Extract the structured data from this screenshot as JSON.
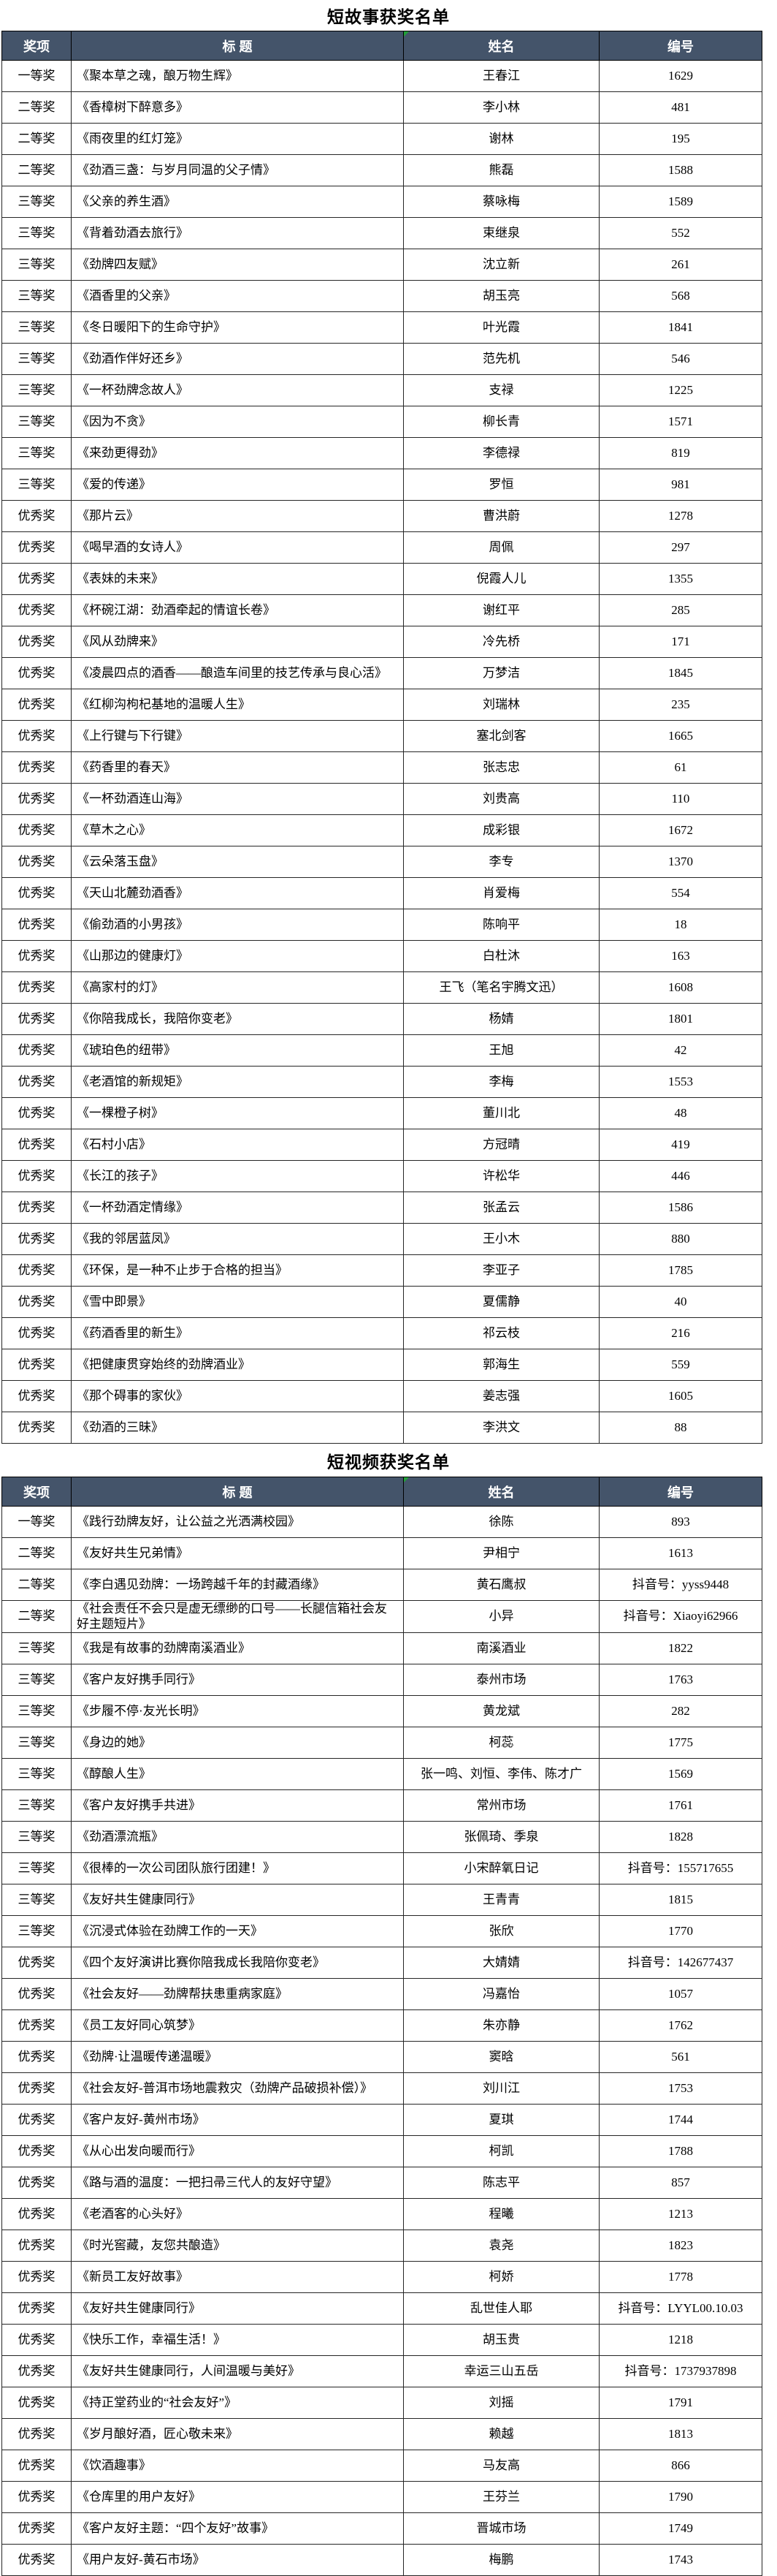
{
  "theme": {
    "header_bg": "#44546A",
    "header_text": "#ffffff",
    "border_color": "#262626",
    "marker_green": "#21a038",
    "page_bg": "#ffffff"
  },
  "tables": [
    {
      "title": "短故事获奖名单",
      "headers": [
        "奖项",
        "标 题",
        "姓名",
        "编号"
      ],
      "rows": [
        [
          "一等奖",
          "《聚本草之魂，酿万物生辉》",
          "王春江",
          "1629"
        ],
        [
          "二等奖",
          "《香樟树下醉意多》",
          "李小林",
          "481"
        ],
        [
          "二等奖",
          "《雨夜里的红灯笼》",
          "谢林",
          "195"
        ],
        [
          "二等奖",
          "《劲酒三盏：与岁月同温的父子情》",
          "熊磊",
          "1588"
        ],
        [
          "三等奖",
          "《父亲的养生酒》",
          "蔡咏梅",
          "1589"
        ],
        [
          "三等奖",
          "《背着劲酒去旅行》",
          "束继泉",
          "552"
        ],
        [
          "三等奖",
          "《劲牌四友赋》",
          "沈立新",
          "261"
        ],
        [
          "三等奖",
          "《酒香里的父亲》",
          "胡玉亮",
          "568"
        ],
        [
          "三等奖",
          "《冬日暖阳下的生命守护》",
          "叶光霞",
          "1841"
        ],
        [
          "三等奖",
          "《劲酒作伴好还乡》",
          "范先机",
          "546"
        ],
        [
          "三等奖",
          "《一杯劲牌念故人》",
          "支禄",
          "1225"
        ],
        [
          "三等奖",
          "《因为不贪》",
          "柳长青",
          "1571"
        ],
        [
          "三等奖",
          "《来劲更得劲》",
          "李德禄",
          "819"
        ],
        [
          "三等奖",
          "《爱的传递》",
          "罗恒",
          "981"
        ],
        [
          "优秀奖",
          "《那片云》",
          "曹洪蔚",
          "1278"
        ],
        [
          "优秀奖",
          "《喝早酒的女诗人》",
          "周佩",
          "297"
        ],
        [
          "优秀奖",
          "《表妹的未来》",
          "倪霞人儿",
          "1355"
        ],
        [
          "优秀奖",
          "《杯碗江湖：劲酒牵起的情谊长卷》",
          "谢红平",
          "285"
        ],
        [
          "优秀奖",
          "《风从劲牌来》",
          "冷先桥",
          "171"
        ],
        [
          "优秀奖",
          "《凌晨四点的酒香——酿造车间里的技艺传承与良心活》",
          "万梦洁",
          "1845"
        ],
        [
          "优秀奖",
          "《红柳沟枸杞基地的温暖人生》",
          "刘瑞林",
          "235"
        ],
        [
          "优秀奖",
          "《上行键与下行键》",
          "塞北剑客",
          "1665"
        ],
        [
          "优秀奖",
          "《药香里的春天》",
          "张志忠",
          "61"
        ],
        [
          "优秀奖",
          "《一杯劲酒连山海》",
          "刘贵高",
          "110"
        ],
        [
          "优秀奖",
          "《草木之心》",
          "成彩银",
          "1672"
        ],
        [
          "优秀奖",
          "《云朵落玉盘》",
          "李专",
          "1370"
        ],
        [
          "优秀奖",
          "《天山北麓劲酒香》",
          "肖爱梅",
          "554"
        ],
        [
          "优秀奖",
          "《偷劲酒的小男孩》",
          "陈响平",
          "18"
        ],
        [
          "优秀奖",
          "《山那边的健康灯》",
          "白杜沐",
          "163"
        ],
        [
          "优秀奖",
          "《高家村的灯》",
          "王飞（笔名宇腾文迅）",
          "1608"
        ],
        [
          "优秀奖",
          "《你陪我成长，我陪你变老》",
          "杨婧",
          "1801"
        ],
        [
          "优秀奖",
          "《琥珀色的纽带》",
          "王旭",
          "42"
        ],
        [
          "优秀奖",
          "《老酒馆的新规矩》",
          "李梅",
          "1553"
        ],
        [
          "优秀奖",
          "《一棵橙子树》",
          "董川北",
          "48"
        ],
        [
          "优秀奖",
          "《石村小店》",
          "方冠晴",
          "419"
        ],
        [
          "优秀奖",
          "《长江的孩子》",
          "许松华",
          "446"
        ],
        [
          "优秀奖",
          "《一杯劲酒定情缘》",
          "张孟云",
          "1586"
        ],
        [
          "优秀奖",
          "《我的邻居蓝凤》",
          "王小木",
          "880"
        ],
        [
          "优秀奖",
          "《环保，是一种不止步于合格的担当》",
          "李亚子",
          "1785"
        ],
        [
          "优秀奖",
          "《雪中即景》",
          "夏儒静",
          "40"
        ],
        [
          "优秀奖",
          "《药酒香里的新生》",
          "祁云枝",
          "216"
        ],
        [
          "优秀奖",
          "《把健康贯穿始终的劲牌酒业》",
          "郭海生",
          "559"
        ],
        [
          "优秀奖",
          "《那个碍事的家伙》",
          "姜志强",
          "1605"
        ],
        [
          "优秀奖",
          "《劲酒的三昧》",
          "李洪文",
          "88"
        ]
      ]
    },
    {
      "title": "短视频获奖名单",
      "headers": [
        "奖项",
        "标 题",
        "姓名",
        "编号"
      ],
      "rows": [
        [
          "一等奖",
          "《践行劲牌友好，让公益之光洒满校园》",
          "徐陈",
          "893"
        ],
        [
          "二等奖",
          "《友好共生兄弟情》",
          "尹相宁",
          "1613"
        ],
        [
          "二等奖",
          "《李白遇见劲牌：一场跨越千年的封藏酒缘》",
          "黄石鹰叔",
          "抖音号：yyss9448"
        ],
        [
          "二等奖",
          "《社会责任不会只是虚无缥缈的口号——长腿信箱社会友好主题短片》",
          "小异",
          "抖音号：Xiaoyi62966"
        ],
        [
          "三等奖",
          "《我是有故事的劲牌南溪酒业》",
          "南溪酒业",
          "1822"
        ],
        [
          "三等奖",
          "《客户友好携手同行》",
          "泰州市场",
          "1763"
        ],
        [
          "三等奖",
          "《步履不停·友光长明》",
          "黄龙斌",
          "282"
        ],
        [
          "三等奖",
          "《身边的她》",
          "柯蕊",
          "1775"
        ],
        [
          "三等奖",
          "《醇酿人生》",
          "张一鸣、刘恒、李伟、陈才广",
          "1569"
        ],
        [
          "三等奖",
          "《客户友好携手共进》",
          "常州市场",
          "1761"
        ],
        [
          "三等奖",
          "《劲酒漂流瓶》",
          "张佩琦、季泉",
          "1828"
        ],
        [
          "三等奖",
          "《很棒的一次公司团队旅行团建！》",
          "小宋醉氧日记",
          "抖音号：155717655"
        ],
        [
          "三等奖",
          "《友好共生健康同行》",
          "王青青",
          "1815"
        ],
        [
          "三等奖",
          "《沉浸式体验在劲牌工作的一天》",
          "张欣",
          "1770"
        ],
        [
          "优秀奖",
          "《四个友好演讲比赛你陪我成长我陪你变老》",
          "大婧婧",
          "抖音号：142677437"
        ],
        [
          "优秀奖",
          "《社会友好——劲牌帮扶患重病家庭》",
          "冯嘉怡",
          "1057"
        ],
        [
          "优秀奖",
          "《员工友好同心筑梦》",
          "朱亦静",
          "1762"
        ],
        [
          "优秀奖",
          "《劲牌·让温暖传递温暖》",
          "窦晗",
          "561"
        ],
        [
          "优秀奖",
          "《社会友好-普洱市场地震救灾（劲牌产品破损补偿）》",
          "刘川江",
          "1753"
        ],
        [
          "优秀奖",
          "《客户友好-黄州市场》",
          "夏琪",
          "1744"
        ],
        [
          "优秀奖",
          "《从心出发向暖而行》",
          "柯凯",
          "1788"
        ],
        [
          "优秀奖",
          "《路与酒的温度：一把扫帚三代人的友好守望》",
          "陈志平",
          "857"
        ],
        [
          "优秀奖",
          "《老酒客的心头好》",
          "程曦",
          "1213"
        ],
        [
          "优秀奖",
          "《时光窖藏，友您共酿造》",
          "袁尧",
          "1823"
        ],
        [
          "优秀奖",
          "《新员工友好故事》",
          "柯娇",
          "1778"
        ],
        [
          "优秀奖",
          "《友好共生健康同行》",
          "乱世佳人耶",
          "抖音号：LYYL00.10.03"
        ],
        [
          "优秀奖",
          "《快乐工作，幸福生活！》",
          "胡玉贵",
          "1218"
        ],
        [
          "优秀奖",
          "《友好共生健康同行，人间温暖与美好》",
          "幸运三山五岳",
          "抖音号：1737937898"
        ],
        [
          "优秀奖",
          "《持正堂药业的“社会友好”》",
          "刘摇",
          "1791"
        ],
        [
          "优秀奖",
          "《岁月酿好酒，匠心敬未来》",
          "赖越",
          "1813"
        ],
        [
          "优秀奖",
          "《饮酒趣事》",
          "马友高",
          "866"
        ],
        [
          "优秀奖",
          "《仓库里的用户友好》",
          "王芬兰",
          "1790"
        ],
        [
          "优秀奖",
          "《客户友好主题：“四个友好”故事》",
          "晋城市场",
          "1749"
        ],
        [
          "优秀奖",
          "《用户友好-黄石市场》",
          "梅鹏",
          "1743"
        ]
      ]
    }
  ]
}
